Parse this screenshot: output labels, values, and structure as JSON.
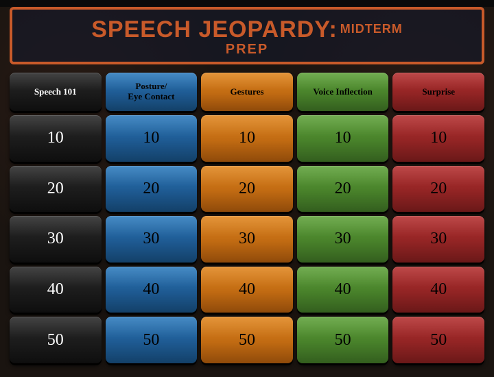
{
  "title": {
    "main": "SPEECH JEOPARDY:",
    "sub": "MIDTERM",
    "line2": "PREP",
    "text_color": "#c85a2a",
    "border_color": "#c85a2a",
    "box_bg": "rgba(20,25,45,0.55)"
  },
  "board": {
    "columns": [
      {
        "label": "Speech 101",
        "color_top": "#2a2a2a",
        "color_mid": "#1b1b1b",
        "color_bot": "#0e0e0e",
        "text_color": "#ffffff"
      },
      {
        "label": "Posture/\nEye Contact",
        "color_top": "#2d7bbd",
        "color_mid": "#1e5a92",
        "color_bot": "#134068",
        "text_color": "#000000"
      },
      {
        "label": "Gestures",
        "color_top": "#e0861f",
        "color_mid": "#c06a12",
        "color_bot": "#8f4a0a",
        "text_color": "#000000"
      },
      {
        "label": "Voice Inflection",
        "color_top": "#5fa23a",
        "color_mid": "#48812a",
        "color_bot": "#335e1e",
        "text_color": "#000000"
      },
      {
        "label": "Surprise",
        "color_top": "#b43030",
        "color_mid": "#922424",
        "color_bot": "#6a1818",
        "text_color": "#000000"
      }
    ],
    "values": [
      10,
      20,
      30,
      40,
      50
    ],
    "category_fontsize": 13,
    "value_fontsize": 24,
    "cell_radius": 8
  }
}
